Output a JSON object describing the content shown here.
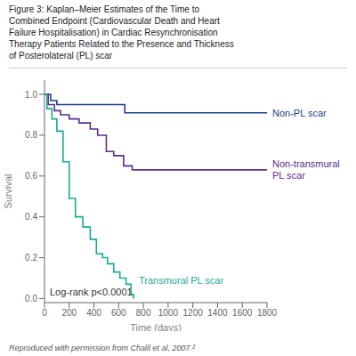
{
  "chart_data": {
    "type": "step",
    "title": "Figure 3: Kaplan–Meier Estimates of the Time to\nCombined Endpoint (Cardiovascular Death and Heart\nFailure Hospitalisation) in Cardiac Resynchronisation\nTherapy Patients Related to the Presence and Thickness\nof Posterolateral (PL) scar",
    "caption": "Reproduced with permission from Chalil et al, 2007.²",
    "xlabel": "Time (days)",
    "ylabel": "Survival",
    "annotations": [
      "Log-rank p<0.0001"
    ],
    "xlim": [
      0,
      1800
    ],
    "ylim": [
      -0.02,
      1.07
    ],
    "xticks": [
      0,
      200,
      400,
      600,
      800,
      1000,
      1200,
      1400,
      1600,
      1800
    ],
    "yticks": [
      {
        "value": 0.0,
        "label": "0.0"
      },
      0.2,
      0.4,
      0.6,
      0.8,
      {
        "value": 1.0,
        "label": "1.0"
      }
    ],
    "grid": false,
    "series": [
      {
        "name": "Non-PL scar",
        "color": "#1b3f8b",
        "x": [
          0,
          50,
          100,
          200,
          650,
          1800
        ],
        "values": [
          1.0,
          0.97,
          0.95,
          0.95,
          0.91,
          0.91
        ]
      },
      {
        "name": "Non-transmural\nPL scar",
        "color": "#5b2d8e",
        "x": [
          0,
          30,
          80,
          130,
          200,
          280,
          370,
          430,
          500,
          560,
          640,
          710,
          1800
        ],
        "values": [
          1.0,
          0.95,
          0.92,
          0.9,
          0.88,
          0.86,
          0.83,
          0.8,
          0.72,
          0.7,
          0.65,
          0.63,
          0.63
        ]
      },
      {
        "name": "Transmural PL scar",
        "color": "#1aaa96",
        "x": [
          0,
          20,
          60,
          100,
          150,
          200,
          250,
          310,
          370,
          420,
          470,
          510,
          560,
          610,
          660,
          700,
          720
        ],
        "values": [
          1.0,
          0.93,
          0.88,
          0.82,
          0.67,
          0.49,
          0.4,
          0.35,
          0.29,
          0.22,
          0.2,
          0.17,
          0.13,
          0.1,
          0.07,
          0.02,
          0.0
        ]
      }
    ]
  }
}
